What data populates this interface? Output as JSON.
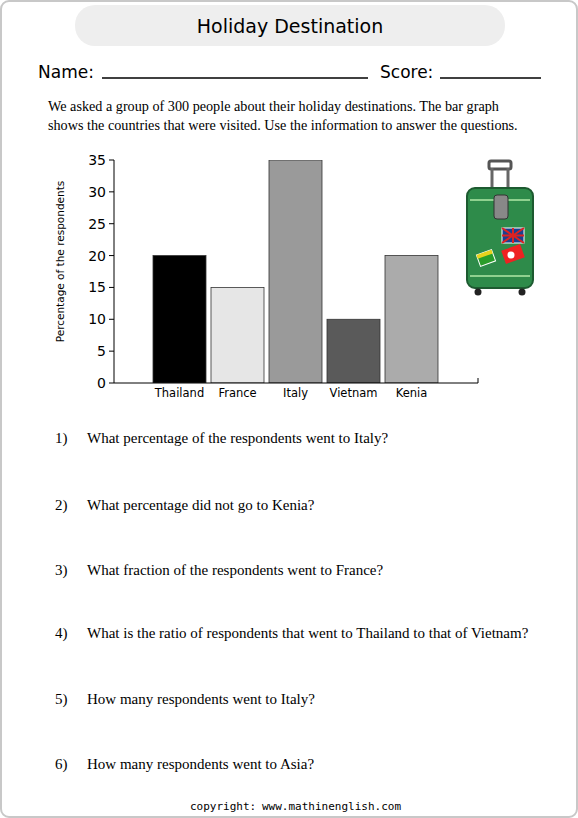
{
  "header": {
    "title": "Holiday Destination",
    "name_label": "Name:",
    "score_label": "Score:"
  },
  "intro": [
    "We asked a group of 300 people about their holiday destinations. The bar graph",
    "shows the countries that were visited. Use the information to answer the questions."
  ],
  "chart_data": {
    "type": "bar",
    "ylabel": "Percentage of the respondents",
    "categories": [
      "Thailand",
      "France",
      "Italy",
      "Vietnam",
      "Kenia"
    ],
    "values": [
      20,
      15,
      35,
      10,
      20
    ],
    "colors": [
      "#000000",
      "#e6e6e6",
      "#9a9a9a",
      "#5a5a5a",
      "#ababab"
    ],
    "ylim": [
      0,
      35
    ],
    "yticks": [
      0,
      5,
      10,
      15,
      20,
      25,
      30,
      35
    ],
    "grid": false
  },
  "questions": [
    {
      "number": "1)",
      "text": "What percentage of the respondents went to Italy?"
    },
    {
      "number": "2)",
      "text": "What percentage did not go to Kenia?"
    },
    {
      "number": "3)",
      "text": "What fraction of the respondents went to France?"
    },
    {
      "number": "4)",
      "text": "What is the ratio of respondents that went to Thailand to that of Vietnam?"
    },
    {
      "number": "5)",
      "text": "How many respondents went to Italy?"
    },
    {
      "number": "6)",
      "text": "How many respondents went to Asia?"
    }
  ],
  "footer": {
    "label": "copyright:",
    "url": "www.mathinenglish.com"
  }
}
